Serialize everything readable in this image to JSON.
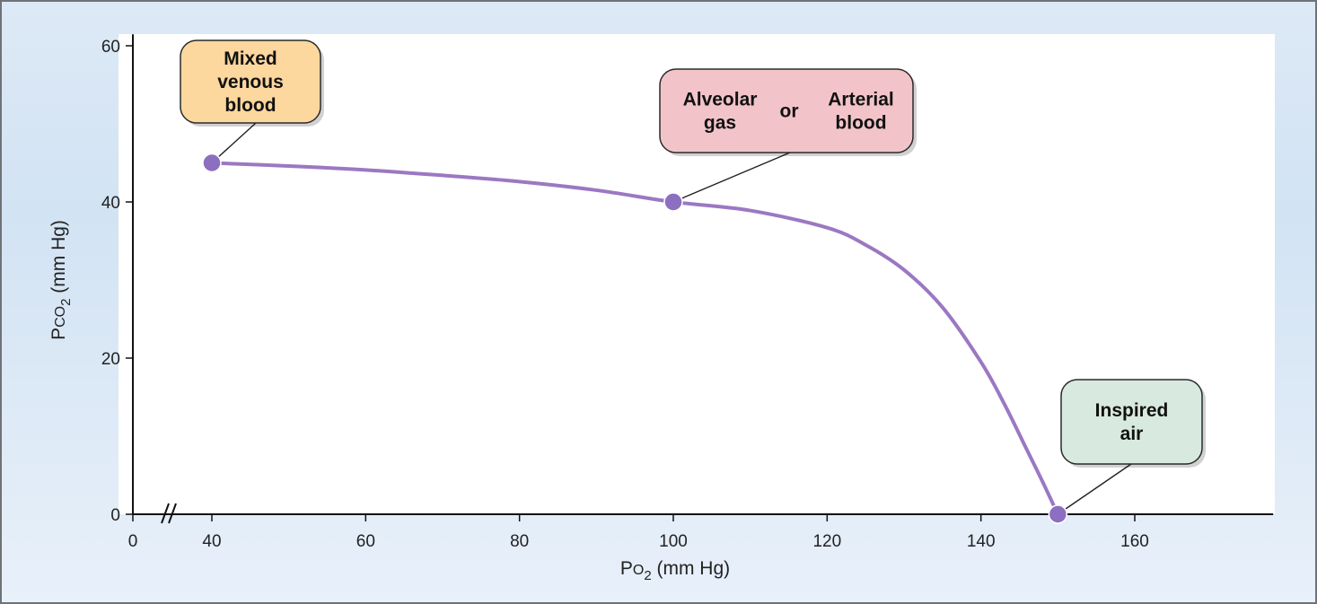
{
  "chart_data": {
    "type": "line",
    "xlabel": {
      "main": "P",
      "sub": "O",
      "subscript": "2",
      "units": " (mm Hg)"
    },
    "ylabel": {
      "main": "P",
      "sub": "CO",
      "subscript": "2",
      "units": " (mm Hg)"
    },
    "xlim": [
      0,
      178
    ],
    "ylim": [
      0,
      61
    ],
    "x_ticks": [
      0,
      40,
      60,
      80,
      100,
      120,
      140,
      160
    ],
    "y_ticks": [
      0,
      20,
      40,
      60
    ],
    "axis_break": "between 0 and 40 on x-axis",
    "grid": false,
    "series": [
      {
        "x": [
          40,
          50,
          60,
          70,
          80,
          90,
          100,
          110,
          120,
          125,
          130,
          135,
          140,
          143,
          146,
          148,
          150
        ],
        "y": [
          45,
          44.6,
          44.1,
          43.4,
          42.6,
          41.5,
          40.0,
          38.9,
          36.7,
          34.5,
          31.3,
          26.5,
          19.5,
          14.2,
          8.2,
          4.2,
          0
        ]
      }
    ],
    "points": [
      {
        "x": 40,
        "y": 45
      },
      {
        "x": 100,
        "y": 40
      },
      {
        "x": 150,
        "y": 0
      }
    ],
    "annotations": [
      {
        "id": "mixed-venous",
        "lines": [
          "Mixed",
          "venous",
          "blood"
        ],
        "target": [
          40,
          45
        ],
        "color": "#fcd79e"
      },
      {
        "id": "alveolar-arterial",
        "left": [
          "Alveolar",
          "gas"
        ],
        "middle": "or",
        "right": [
          "Arterial",
          "blood"
        ],
        "target": [
          100,
          40
        ],
        "color": "#f2c4ca"
      },
      {
        "id": "inspired-air",
        "lines": [
          "Inspired",
          "air"
        ],
        "target": [
          150,
          0
        ],
        "color": "#d8e9df"
      }
    ],
    "colors": {
      "line": "#9b78c2",
      "point": "#8c6fc0",
      "axis": "#111111"
    }
  }
}
